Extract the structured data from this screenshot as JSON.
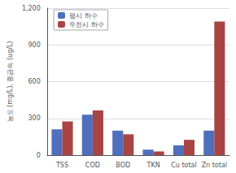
{
  "chart_data": {
    "type": "bar",
    "categories": [
      "TSS",
      "COD",
      "BOD",
      "TKN",
      "Cu total",
      "Zn total"
    ],
    "series": [
      {
        "name": "평시 하수",
        "color": "#4f6fbe",
        "values": [
          210,
          330,
          200,
          45,
          80,
          200
        ]
      },
      {
        "name": "우천시 하수",
        "color": "#a84444",
        "values": [
          275,
          365,
          170,
          30,
          125,
          1090
        ]
      }
    ],
    "ylabel": "농도 (mg/L), 중금속 (ug/L)",
    "ylim": [
      0,
      1200
    ],
    "yticks": [
      0,
      300,
      600,
      900,
      {
        "value": 1200,
        "label": "1,200"
      }
    ],
    "grid": true,
    "legend": "upper left"
  }
}
